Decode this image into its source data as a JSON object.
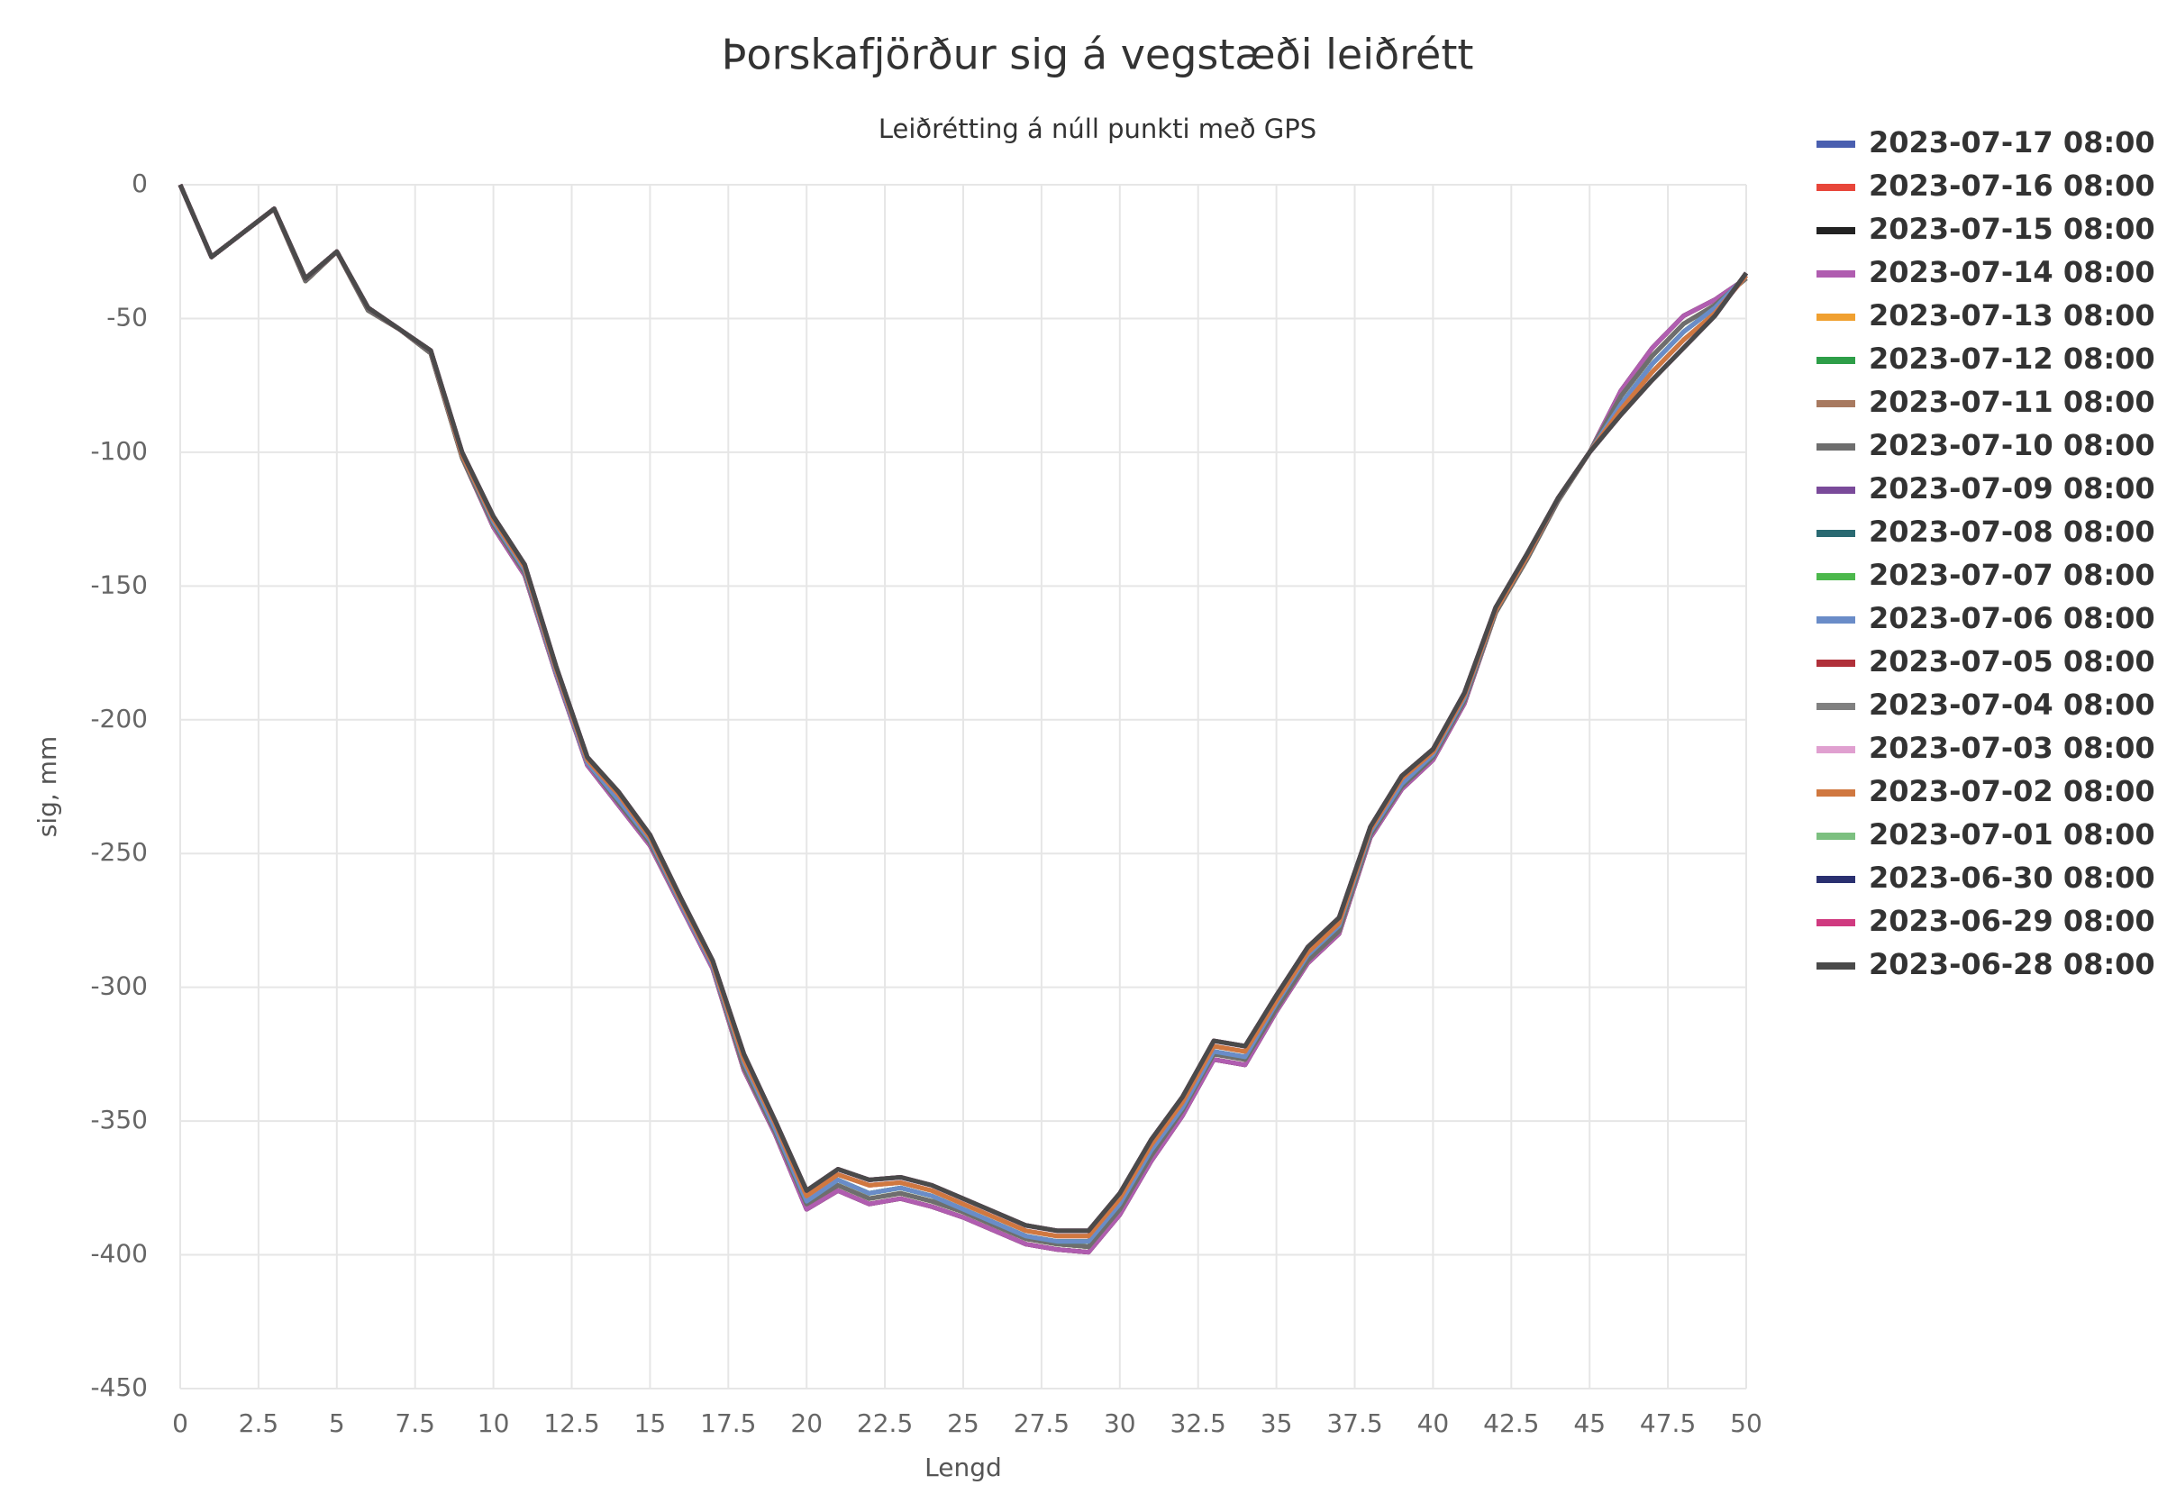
{
  "chart_data": {
    "type": "line",
    "title": "Þorskafjörður sig á vegstæði leiðrétt",
    "subtitle": "Leiðrétting á núll punkti með GPS",
    "x_label": "Lengd",
    "y_label": "sig, mm",
    "x": [
      0,
      1,
      2,
      3,
      4,
      5,
      6,
      7,
      8,
      9,
      10,
      11,
      12,
      13,
      14,
      15,
      16,
      17,
      18,
      19,
      20,
      21,
      22,
      23,
      24,
      25,
      26,
      27,
      28,
      29,
      30,
      31,
      32,
      33,
      34,
      35,
      36,
      37,
      38,
      39,
      40,
      41,
      42,
      43,
      44,
      45,
      46,
      47,
      48,
      49,
      50
    ],
    "xlim": [
      0,
      50
    ],
    "xticks": [
      0,
      2.5,
      5,
      7.5,
      10,
      12.5,
      15,
      17.5,
      20,
      22.5,
      25,
      27.5,
      30,
      32.5,
      35,
      37.5,
      40,
      42.5,
      45,
      47.5,
      50
    ],
    "ylim": [
      -450,
      0
    ],
    "yticks": [
      0,
      -50,
      -100,
      -150,
      -200,
      -250,
      -300,
      -350,
      -400,
      -450
    ],
    "grid": true,
    "legend": "right",
    "series": [
      {
        "name": "2023-07-17 08:00",
        "color": "#4a5fb0",
        "values": [
          0,
          -27,
          -18,
          -9,
          -36,
          -25,
          -47,
          -54,
          -63,
          -102,
          -128,
          -146,
          -183,
          -217,
          -232,
          -247,
          -270,
          -293,
          -331,
          -355,
          -383,
          -376,
          -381,
          -379,
          -382,
          -386,
          -391,
          -396,
          -398,
          -399,
          -385,
          -365,
          -348,
          -327,
          -329,
          -309,
          -291,
          -280,
          -244,
          -226,
          -215,
          -194,
          -160,
          -140,
          -118,
          -100,
          -77,
          -61,
          -49,
          -43,
          -35
        ]
      },
      {
        "name": "2023-07-16 08:00",
        "color": "#e8463a",
        "values": [
          0,
          -27,
          -18,
          -9,
          -36,
          -25,
          -47,
          -54,
          -63,
          -102,
          -128,
          -146,
          -183,
          -217,
          -232,
          -247,
          -270,
          -293,
          -331,
          -355,
          -383,
          -376,
          -381,
          -379,
          -382,
          -386,
          -391,
          -396,
          -398,
          -399,
          -385,
          -365,
          -348,
          -327,
          -329,
          -309,
          -291,
          -280,
          -244,
          -226,
          -215,
          -194,
          -160,
          -140,
          -118,
          -100,
          -77,
          -61,
          -49,
          -43,
          -35
        ]
      },
      {
        "name": "2023-07-15 08:00",
        "color": "#222222",
        "values": [
          0,
          -27,
          -18,
          -9,
          -36,
          -25,
          -47,
          -54,
          -63,
          -102,
          -128,
          -146,
          -183,
          -217,
          -232,
          -247,
          -270,
          -293,
          -331,
          -355,
          -383,
          -376,
          -381,
          -379,
          -382,
          -386,
          -391,
          -396,
          -398,
          -399,
          -385,
          -365,
          -348,
          -327,
          -329,
          -309,
          -291,
          -280,
          -244,
          -226,
          -215,
          -194,
          -160,
          -140,
          -118,
          -100,
          -77,
          -61,
          -49,
          -43,
          -35
        ]
      },
      {
        "name": "2023-07-14 08:00",
        "color": "#b05db0",
        "values": [
          0,
          -27,
          -18,
          -9,
          -36,
          -25,
          -47,
          -54,
          -63,
          -102,
          -128,
          -146,
          -183,
          -217,
          -232,
          -247,
          -270,
          -293,
          -331,
          -355,
          -383,
          -376,
          -381,
          -379,
          -382,
          -386,
          -391,
          -396,
          -398,
          -399,
          -385,
          -365,
          -348,
          -327,
          -329,
          -309,
          -291,
          -280,
          -244,
          -226,
          -215,
          -194,
          -160,
          -140,
          -118,
          -100,
          -77,
          -61,
          -49,
          -43,
          -35
        ]
      },
      {
        "name": "2023-07-13 08:00",
        "color": "#f0a030",
        "values": [
          0,
          -27,
          -18,
          -9,
          -36,
          -25,
          -47,
          -54,
          -63,
          -102,
          -127,
          -145,
          -182,
          -216,
          -231,
          -246,
          -269,
          -292,
          -330,
          -354,
          -381,
          -374,
          -379,
          -377,
          -380,
          -384,
          -389,
          -394,
          -396,
          -397,
          -383,
          -363,
          -346,
          -325,
          -327,
          -308,
          -290,
          -279,
          -243,
          -225,
          -214,
          -193,
          -160,
          -140,
          -118,
          -100,
          -79,
          -64,
          -52,
          -45,
          -35
        ]
      },
      {
        "name": "2023-07-12 08:00",
        "color": "#2e9e48",
        "values": [
          0,
          -27,
          -18,
          -9,
          -36,
          -25,
          -47,
          -54,
          -63,
          -102,
          -127,
          -145,
          -182,
          -216,
          -231,
          -246,
          -269,
          -292,
          -330,
          -354,
          -381,
          -374,
          -379,
          -377,
          -380,
          -384,
          -389,
          -394,
          -396,
          -397,
          -383,
          -363,
          -346,
          -325,
          -327,
          -308,
          -290,
          -279,
          -243,
          -225,
          -214,
          -193,
          -160,
          -140,
          -118,
          -100,
          -79,
          -64,
          -52,
          -45,
          -35
        ]
      },
      {
        "name": "2023-07-11 08:00",
        "color": "#a87a60",
        "values": [
          0,
          -27,
          -18,
          -9,
          -36,
          -25,
          -47,
          -54,
          -63,
          -102,
          -127,
          -145,
          -182,
          -216,
          -231,
          -246,
          -269,
          -292,
          -330,
          -354,
          -381,
          -374,
          -379,
          -377,
          -380,
          -384,
          -389,
          -394,
          -396,
          -397,
          -383,
          -363,
          -346,
          -325,
          -327,
          -308,
          -290,
          -279,
          -243,
          -225,
          -214,
          -193,
          -160,
          -140,
          -118,
          -100,
          -79,
          -64,
          -52,
          -45,
          -35
        ]
      },
      {
        "name": "2023-07-10 08:00",
        "color": "#6e6e6e",
        "values": [
          0,
          -27,
          -18,
          -9,
          -36,
          -25,
          -47,
          -54,
          -63,
          -102,
          -127,
          -145,
          -182,
          -216,
          -231,
          -246,
          -269,
          -292,
          -330,
          -354,
          -381,
          -374,
          -379,
          -377,
          -380,
          -384,
          -389,
          -394,
          -396,
          -397,
          -383,
          -363,
          -346,
          -325,
          -327,
          -308,
          -290,
          -279,
          -243,
          -225,
          -214,
          -193,
          -160,
          -140,
          -118,
          -100,
          -79,
          -64,
          -52,
          -45,
          -35
        ]
      },
      {
        "name": "2023-07-09 08:00",
        "color": "#7a4a9a",
        "values": [
          0,
          -27,
          -18,
          -9,
          -35,
          -25,
          -46,
          -54,
          -62,
          -101,
          -126,
          -144,
          -182,
          -216,
          -230,
          -245,
          -269,
          -292,
          -328,
          -353,
          -380,
          -372,
          -377,
          -375,
          -378,
          -383,
          -388,
          -393,
          -395,
          -395,
          -381,
          -361,
          -345,
          -324,
          -326,
          -306,
          -288,
          -277,
          -242,
          -224,
          -213,
          -192,
          -159,
          -139,
          -117,
          -100,
          -82,
          -67,
          -55,
          -46,
          -34
        ]
      },
      {
        "name": "2023-07-08 08:00",
        "color": "#2a6a72",
        "values": [
          0,
          -27,
          -18,
          -9,
          -35,
          -25,
          -46,
          -54,
          -62,
          -101,
          -126,
          -144,
          -182,
          -216,
          -230,
          -245,
          -269,
          -292,
          -328,
          -353,
          -380,
          -372,
          -377,
          -375,
          -378,
          -383,
          -388,
          -393,
          -395,
          -395,
          -381,
          -361,
          -345,
          -324,
          -326,
          -306,
          -288,
          -277,
          -242,
          -224,
          -213,
          -192,
          -159,
          -139,
          -117,
          -100,
          -82,
          -67,
          -55,
          -46,
          -34
        ]
      },
      {
        "name": "2023-07-07 08:00",
        "color": "#4cb84c",
        "values": [
          0,
          -27,
          -18,
          -9,
          -35,
          -25,
          -46,
          -54,
          -62,
          -101,
          -126,
          -144,
          -182,
          -216,
          -230,
          -245,
          -269,
          -292,
          -328,
          -353,
          -380,
          -372,
          -377,
          -375,
          -378,
          -383,
          -388,
          -393,
          -395,
          -395,
          -381,
          -361,
          -345,
          -324,
          -326,
          -306,
          -288,
          -277,
          -242,
          -224,
          -213,
          -192,
          -159,
          -139,
          -117,
          -100,
          -82,
          -67,
          -55,
          -46,
          -34
        ]
      },
      {
        "name": "2023-07-06 08:00",
        "color": "#6a8cc8",
        "values": [
          0,
          -27,
          -18,
          -9,
          -35,
          -25,
          -46,
          -54,
          -62,
          -101,
          -126,
          -144,
          -182,
          -216,
          -230,
          -245,
          -269,
          -292,
          -328,
          -353,
          -380,
          -372,
          -377,
          -375,
          -378,
          -383,
          -388,
          -393,
          -395,
          -395,
          -381,
          -361,
          -345,
          -324,
          -326,
          -306,
          -288,
          -277,
          -242,
          -224,
          -213,
          -192,
          -159,
          -139,
          -117,
          -100,
          -82,
          -67,
          -55,
          -46,
          -34
        ]
      },
      {
        "name": "2023-07-05 08:00",
        "color": "#b0303a",
        "values": [
          0,
          -27,
          -18,
          -9,
          -35,
          -25,
          -46,
          -54,
          -62,
          -101,
          -125,
          -143,
          -181,
          -215,
          -228,
          -244,
          -268,
          -291,
          -327,
          -351,
          -378,
          -370,
          -374,
          -373,
          -376,
          -381,
          -386,
          -391,
          -393,
          -393,
          -379,
          -359,
          -343,
          -322,
          -324,
          -305,
          -287,
          -276,
          -241,
          -222,
          -212,
          -191,
          -159,
          -139,
          -117,
          -100,
          -84,
          -70,
          -58,
          -48,
          -34
        ]
      },
      {
        "name": "2023-07-04 08:00",
        "color": "#808080",
        "values": [
          0,
          -27,
          -18,
          -9,
          -35,
          -25,
          -46,
          -54,
          -62,
          -101,
          -125,
          -143,
          -181,
          -215,
          -228,
          -244,
          -268,
          -291,
          -327,
          -351,
          -378,
          -370,
          -374,
          -373,
          -376,
          -381,
          -386,
          -391,
          -393,
          -393,
          -379,
          -359,
          -343,
          -322,
          -324,
          -305,
          -287,
          -276,
          -241,
          -222,
          -212,
          -191,
          -159,
          -139,
          -117,
          -100,
          -84,
          -70,
          -58,
          -48,
          -34
        ]
      },
      {
        "name": "2023-07-03 08:00",
        "color": "#e0a0d0",
        "values": [
          0,
          -27,
          -18,
          -9,
          -35,
          -25,
          -46,
          -54,
          -62,
          -101,
          -125,
          -143,
          -181,
          -215,
          -228,
          -244,
          -268,
          -291,
          -327,
          -351,
          -378,
          -370,
          -374,
          -373,
          -376,
          -381,
          -386,
          -391,
          -393,
          -393,
          -379,
          -359,
          -343,
          -322,
          -324,
          -305,
          -287,
          -276,
          -241,
          -222,
          -212,
          -191,
          -159,
          -139,
          -117,
          -100,
          -84,
          -70,
          -58,
          -48,
          -34
        ]
      },
      {
        "name": "2023-07-02 08:00",
        "color": "#d07840",
        "values": [
          0,
          -27,
          -18,
          -9,
          -35,
          -25,
          -46,
          -54,
          -62,
          -101,
          -125,
          -143,
          -181,
          -215,
          -228,
          -244,
          -268,
          -291,
          -327,
          -351,
          -378,
          -370,
          -374,
          -373,
          -376,
          -381,
          -386,
          -391,
          -393,
          -393,
          -379,
          -359,
          -343,
          -322,
          -324,
          -305,
          -287,
          -276,
          -241,
          -222,
          -212,
          -191,
          -159,
          -139,
          -117,
          -100,
          -84,
          -70,
          -58,
          -48,
          -34
        ]
      },
      {
        "name": "2023-07-01 08:00",
        "color": "#7cc080",
        "values": [
          0,
          -27,
          -18,
          -9,
          -35,
          -25,
          -46,
          -54,
          -62,
          -100,
          -124,
          -142,
          -180,
          -214,
          -227,
          -243,
          -267,
          -290,
          -325,
          -350,
          -376,
          -368,
          -372,
          -371,
          -374,
          -379,
          -384,
          -389,
          -391,
          -391,
          -377,
          -357,
          -341,
          -320,
          -322,
          -303,
          -285,
          -274,
          -240,
          -221,
          -211,
          -190,
          -158,
          -138,
          -117,
          -100,
          -86,
          -73,
          -61,
          -49,
          -33
        ]
      },
      {
        "name": "2023-06-30 08:00",
        "color": "#2a3070",
        "values": [
          0,
          -27,
          -18,
          -9,
          -35,
          -25,
          -46,
          -54,
          -62,
          -100,
          -124,
          -142,
          -180,
          -214,
          -227,
          -243,
          -267,
          -290,
          -325,
          -350,
          -376,
          -368,
          -372,
          -371,
          -374,
          -379,
          -384,
          -389,
          -391,
          -391,
          -377,
          -357,
          -341,
          -320,
          -322,
          -303,
          -285,
          -274,
          -240,
          -221,
          -211,
          -190,
          -158,
          -138,
          -117,
          -100,
          -86,
          -73,
          -61,
          -49,
          -33
        ]
      },
      {
        "name": "2023-06-29 08:00",
        "color": "#d03a80",
        "values": [
          0,
          -27,
          -18,
          -9,
          -35,
          -25,
          -46,
          -54,
          -62,
          -100,
          -124,
          -142,
          -180,
          -214,
          -227,
          -243,
          -267,
          -290,
          -325,
          -350,
          -376,
          -368,
          -372,
          -371,
          -374,
          -379,
          -384,
          -389,
          -391,
          -391,
          -377,
          -357,
          -341,
          -320,
          -322,
          -303,
          -285,
          -274,
          -240,
          -221,
          -211,
          -190,
          -158,
          -138,
          -117,
          -100,
          -86,
          -73,
          -61,
          -49,
          -33
        ]
      },
      {
        "name": "2023-06-28 08:00",
        "color": "#4a4a4a",
        "values": [
          0,
          -27,
          -18,
          -9,
          -35,
          -25,
          -46,
          -54,
          -62,
          -100,
          -124,
          -142,
          -180,
          -214,
          -227,
          -243,
          -267,
          -290,
          -325,
          -350,
          -376,
          -368,
          -372,
          -371,
          -374,
          -379,
          -384,
          -389,
          -391,
          -391,
          -377,
          -357,
          -341,
          -320,
          -322,
          -303,
          -285,
          -274,
          -240,
          -221,
          -211,
          -190,
          -158,
          -138,
          -117,
          -100,
          -86,
          -73,
          -61,
          -49,
          -33
        ]
      }
    ]
  }
}
